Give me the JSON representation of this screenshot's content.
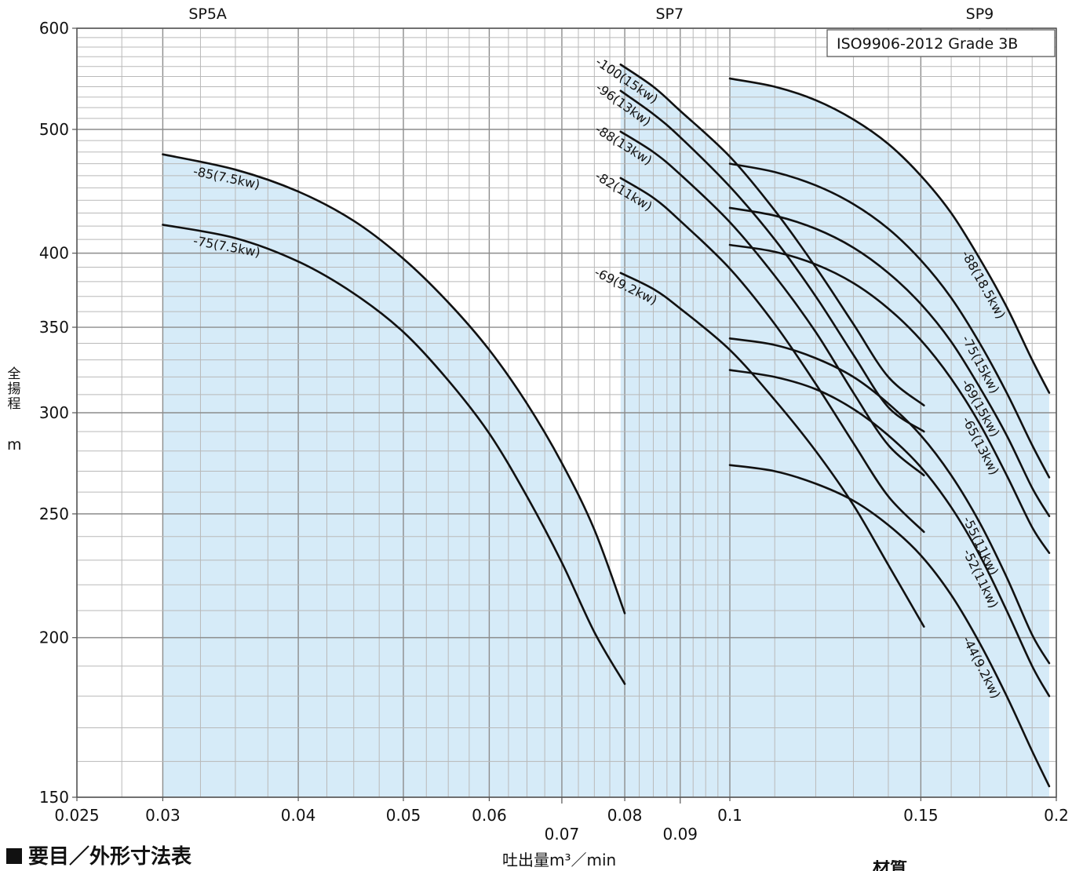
{
  "chart_data": {
    "type": "line",
    "badge": "ISO9906-2012 Grade 3B",
    "ylabel": "全揚程",
    "yunit": "m",
    "xlabel": "吐出量m³／min",
    "xscale": "log",
    "yscale": "log",
    "xlim": [
      0.025,
      0.2
    ],
    "ylim": [
      150,
      600
    ],
    "grid": true,
    "x_ticks": [
      {
        "v": 0.025,
        "label": "0.025",
        "row": 0
      },
      {
        "v": 0.03,
        "label": "0.03",
        "row": 0
      },
      {
        "v": 0.04,
        "label": "0.04",
        "row": 0
      },
      {
        "v": 0.05,
        "label": "0.05",
        "row": 0
      },
      {
        "v": 0.06,
        "label": "0.06",
        "row": 0
      },
      {
        "v": 0.07,
        "label": "0.07",
        "row": 1
      },
      {
        "v": 0.08,
        "label": "0.08",
        "row": 0
      },
      {
        "v": 0.09,
        "label": "0.09",
        "row": 1
      },
      {
        "v": 0.1,
        "label": "0.1",
        "row": 0
      },
      {
        "v": 0.15,
        "label": "0.15",
        "row": 0
      },
      {
        "v": 0.2,
        "label": "0.2",
        "row": 0
      }
    ],
    "y_ticks": [
      {
        "v": 150,
        "label": "150"
      },
      {
        "v": 200,
        "label": "200"
      },
      {
        "v": 250,
        "label": "250"
      },
      {
        "v": 300,
        "label": "300"
      },
      {
        "v": 350,
        "label": "350"
      },
      {
        "v": 400,
        "label": "400"
      },
      {
        "v": 500,
        "label": "500"
      },
      {
        "v": 600,
        "label": "600"
      }
    ],
    "models": [
      {
        "name": "SP5A",
        "x": 0.033,
        "range": [
          0.03,
          0.08
        ]
      },
      {
        "name": "SP7",
        "x": 0.088,
        "range": [
          0.0793,
          0.1
        ]
      },
      {
        "name": "SP9",
        "x": 0.17,
        "range": [
          0.1,
          0.197
        ]
      }
    ],
    "series": [
      {
        "name": "-85(7.5kw)",
        "model": "SP5A",
        "label_at": 0.035,
        "points": [
          [
            0.03,
            478
          ],
          [
            0.035,
            465
          ],
          [
            0.04,
            447
          ],
          [
            0.045,
            424
          ],
          [
            0.05,
            396
          ],
          [
            0.055,
            366
          ],
          [
            0.06,
            336
          ],
          [
            0.065,
            305
          ],
          [
            0.07,
            274
          ],
          [
            0.075,
            243
          ],
          [
            0.08,
            209
          ]
        ]
      },
      {
        "name": "-75(7.5kw)",
        "model": "SP5A",
        "label_at": 0.035,
        "points": [
          [
            0.03,
            421
          ],
          [
            0.035,
            411
          ],
          [
            0.04,
            394
          ],
          [
            0.045,
            372
          ],
          [
            0.05,
            347
          ],
          [
            0.055,
            318
          ],
          [
            0.06,
            289
          ],
          [
            0.065,
            258
          ],
          [
            0.07,
            229
          ],
          [
            0.075,
            202
          ],
          [
            0.08,
            184
          ]
        ]
      },
      {
        "name": "-100(15kw)",
        "model": "SP7",
        "label_at": 0.082,
        "points": [
          [
            0.0793,
            562
          ],
          [
            0.085,
            540
          ],
          [
            0.09,
            517
          ],
          [
            0.1,
            476
          ],
          [
            0.11,
            432
          ],
          [
            0.12,
            390
          ],
          [
            0.13,
            352
          ],
          [
            0.14,
            320
          ],
          [
            0.151,
            304
          ]
        ]
      },
      {
        "name": "-96(13kw)",
        "model": "SP7",
        "label_at": 0.082,
        "points": [
          [
            0.0793,
            536
          ],
          [
            0.085,
            514
          ],
          [
            0.09,
            493
          ],
          [
            0.1,
            451
          ],
          [
            0.11,
            410
          ],
          [
            0.12,
            370
          ],
          [
            0.13,
            333
          ],
          [
            0.14,
            303
          ],
          [
            0.151,
            290
          ]
        ]
      },
      {
        "name": "-88(13kw)",
        "model": "SP7",
        "label_at": 0.082,
        "points": [
          [
            0.0793,
            498
          ],
          [
            0.085,
            480
          ],
          [
            0.09,
            461
          ],
          [
            0.1,
            423
          ],
          [
            0.11,
            384
          ],
          [
            0.12,
            347
          ],
          [
            0.13,
            311
          ],
          [
            0.14,
            283
          ],
          [
            0.151,
            268
          ]
        ]
      },
      {
        "name": "-82(11kw)",
        "model": "SP7",
        "label_at": 0.082,
        "points": [
          [
            0.0793,
            458
          ],
          [
            0.085,
            442
          ],
          [
            0.09,
            424
          ],
          [
            0.1,
            389
          ],
          [
            0.11,
            352
          ],
          [
            0.12,
            316
          ],
          [
            0.13,
            284
          ],
          [
            0.14,
            258
          ],
          [
            0.151,
            242
          ]
        ]
      },
      {
        "name": "-69(9.2kw)",
        "model": "SP7",
        "label_at": 0.082,
        "points": [
          [
            0.0793,
            386
          ],
          [
            0.085,
            375
          ],
          [
            0.09,
            362
          ],
          [
            0.1,
            336
          ],
          [
            0.11,
            307
          ],
          [
            0.12,
            280
          ],
          [
            0.13,
            254
          ],
          [
            0.14,
            228
          ],
          [
            0.151,
            204
          ]
        ]
      },
      {
        "name": "-88(18.5kw)",
        "model": "SP9",
        "label_at": 0.175,
        "points": [
          [
            0.1,
            548
          ],
          [
            0.11,
            540
          ],
          [
            0.12,
            527
          ],
          [
            0.13,
            509
          ],
          [
            0.14,
            487
          ],
          [
            0.15,
            460
          ],
          [
            0.16,
            430
          ],
          [
            0.17,
            396
          ],
          [
            0.18,
            363
          ],
          [
            0.19,
            330
          ],
          [
            0.197,
            311
          ]
        ]
      },
      {
        "name": "-75(15kw)",
        "model": "SP9",
        "label_at": 0.175,
        "points": [
          [
            0.1,
            470
          ],
          [
            0.11,
            463
          ],
          [
            0.12,
            452
          ],
          [
            0.13,
            437
          ],
          [
            0.14,
            418
          ],
          [
            0.15,
            395
          ],
          [
            0.16,
            369
          ],
          [
            0.17,
            340
          ],
          [
            0.18,
            311
          ],
          [
            0.19,
            283
          ],
          [
            0.197,
            267
          ]
        ]
      },
      {
        "name": "-69(15kw)",
        "model": "SP9",
        "label_at": 0.175,
        "points": [
          [
            0.1,
            434
          ],
          [
            0.11,
            428
          ],
          [
            0.12,
            418
          ],
          [
            0.13,
            404
          ],
          [
            0.14,
            386
          ],
          [
            0.15,
            365
          ],
          [
            0.16,
            341
          ],
          [
            0.17,
            314
          ],
          [
            0.18,
            288
          ],
          [
            0.19,
            262
          ],
          [
            0.197,
            249
          ]
        ]
      },
      {
        "name": "-65(13kw)",
        "model": "SP9",
        "label_at": 0.175,
        "points": [
          [
            0.1,
            406
          ],
          [
            0.11,
            401
          ],
          [
            0.12,
            392
          ],
          [
            0.13,
            379
          ],
          [
            0.14,
            362
          ],
          [
            0.15,
            342
          ],
          [
            0.16,
            319
          ],
          [
            0.17,
            294
          ],
          [
            0.18,
            268
          ],
          [
            0.19,
            244
          ],
          [
            0.197,
            233
          ]
        ]
      },
      {
        "name": "-55(11kw)",
        "model": "SP9",
        "label_at": 0.175,
        "points": [
          [
            0.1,
            343
          ],
          [
            0.11,
            339
          ],
          [
            0.12,
            331
          ],
          [
            0.13,
            320
          ],
          [
            0.14,
            305
          ],
          [
            0.15,
            288
          ],
          [
            0.16,
            268
          ],
          [
            0.17,
            246
          ],
          [
            0.18,
            223
          ],
          [
            0.19,
            201
          ],
          [
            0.197,
            191
          ]
        ]
      },
      {
        "name": "-52(11kw)",
        "model": "SP9",
        "label_at": 0.175,
        "points": [
          [
            0.1,
            324
          ],
          [
            0.11,
            320
          ],
          [
            0.12,
            313
          ],
          [
            0.13,
            302
          ],
          [
            0.14,
            288
          ],
          [
            0.15,
            272
          ],
          [
            0.16,
            253
          ],
          [
            0.17,
            232
          ],
          [
            0.18,
            210
          ],
          [
            0.19,
            190
          ],
          [
            0.197,
            180
          ]
        ]
      },
      {
        "name": "-44(9.2kw)",
        "model": "SP9",
        "label_at": 0.175,
        "points": [
          [
            0.1,
            273
          ],
          [
            0.11,
            270
          ],
          [
            0.12,
            264
          ],
          [
            0.13,
            256
          ],
          [
            0.14,
            245
          ],
          [
            0.15,
            232
          ],
          [
            0.16,
            216
          ],
          [
            0.17,
            198
          ],
          [
            0.18,
            180
          ],
          [
            0.19,
            163
          ],
          [
            0.197,
            153
          ]
        ]
      }
    ]
  },
  "colors": {
    "fill": "#d6ebf8",
    "curve": "#111111",
    "grid_minor": "#b9b9b9",
    "grid_major": "#8c8c8c"
  },
  "page": {
    "section_title": "要目／外形寸法表",
    "cut_text": "材質"
  }
}
